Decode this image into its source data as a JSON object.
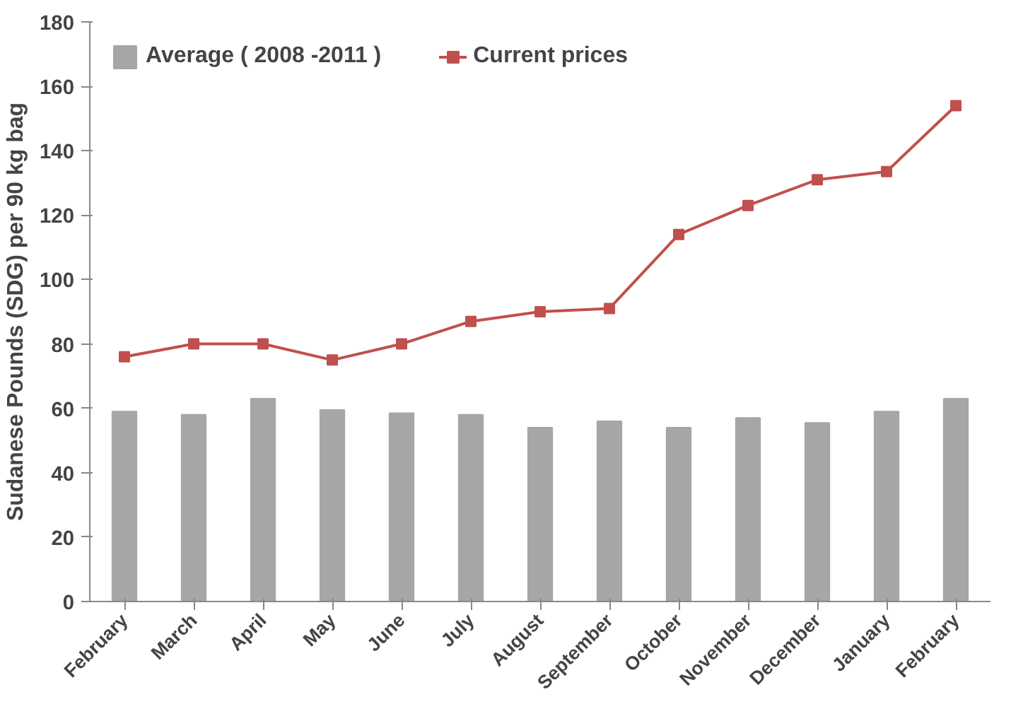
{
  "chart_data": {
    "type": "bar",
    "ylabel": "Sudanese Pounds (SDG) per 90 kg bag",
    "categories": [
      "February",
      "March",
      "April",
      "May",
      "June",
      "July",
      "August",
      "September",
      "October",
      "November",
      "December",
      "January",
      "February"
    ],
    "series": [
      {
        "name": "Average ( 2008 -2011 )",
        "color": "#a6a6a6",
        "values": [
          59,
          58,
          63,
          59.5,
          58.5,
          58,
          54,
          56,
          54,
          57,
          55.5,
          59,
          63
        ]
      },
      {
        "name": "Current prices",
        "type": "line",
        "color": "#c0504d",
        "marker": "square",
        "values": [
          76,
          80,
          80,
          75,
          80,
          87,
          90,
          91,
          114,
          123,
          131,
          133.5,
          154
        ]
      }
    ],
    "ylim": [
      0,
      180
    ],
    "yticks": [
      0,
      20,
      40,
      60,
      80,
      100,
      120,
      140,
      160,
      180
    ],
    "grid": false,
    "legend": "top left"
  }
}
